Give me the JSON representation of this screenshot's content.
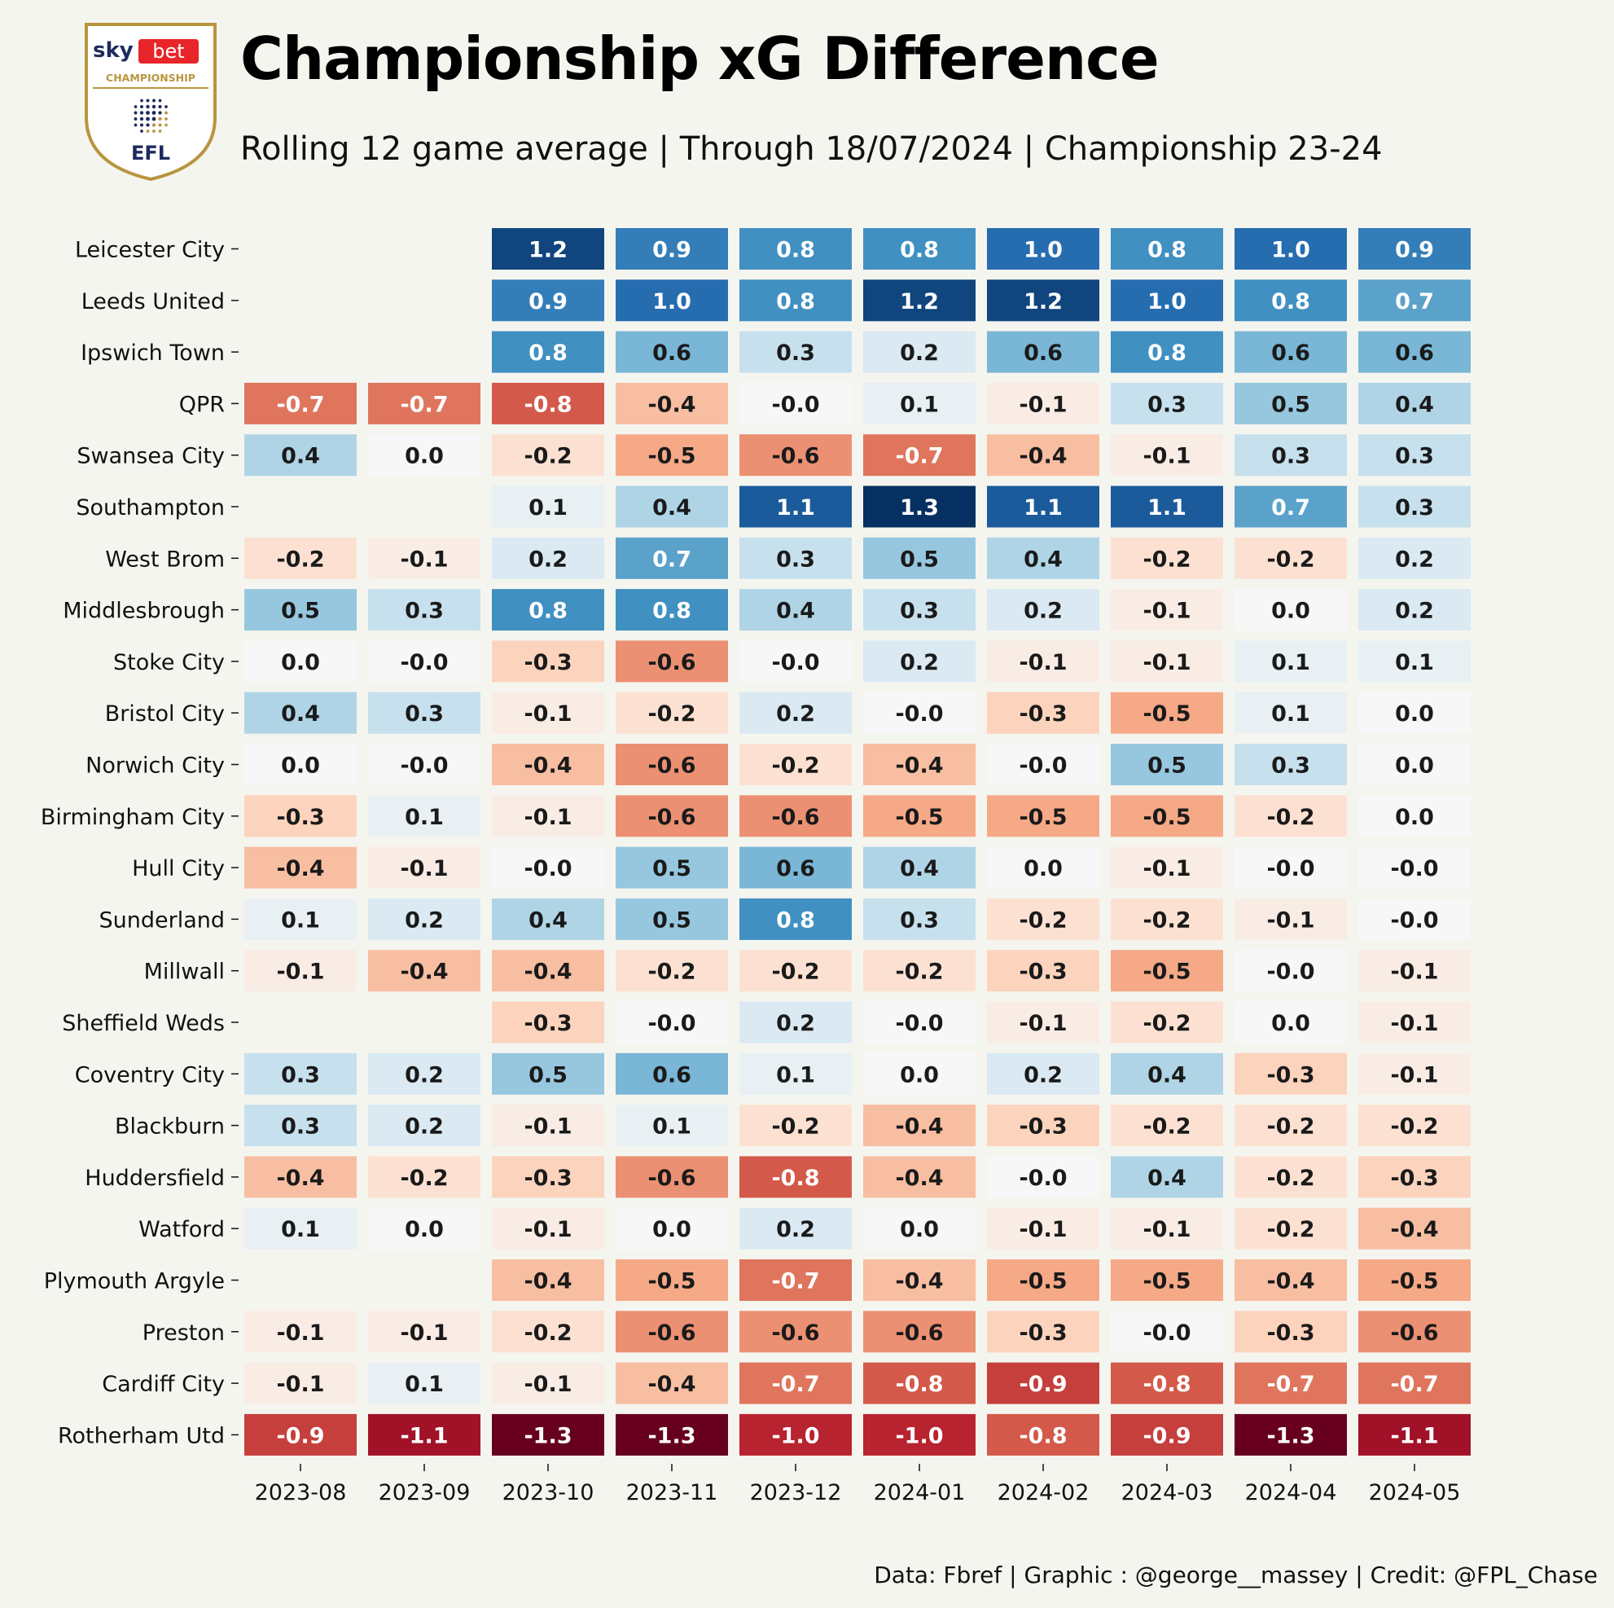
{
  "header": {
    "title": "Championship xG Difference",
    "subtitle": "Rolling 12 game average | Through 18/07/2024 | Championship 23-24"
  },
  "logo": {
    "brand_sky": "sky",
    "brand_bet": "bet",
    "league": "CHAMPIONSHIP",
    "federation": "EFL"
  },
  "footer": {
    "credit": "Data: Fbref | Graphic : @george__massey | Credit: @FPL_Chase"
  },
  "colors": {
    "background": "#f5f5f0",
    "positive_max": "#053061",
    "negative_max": "#67001f",
    "neutral": "#f7f7f7",
    "logo_gold": "#b8963e",
    "logo_navy": "#1d2a5e",
    "logo_red": "#e8252a"
  },
  "chart_data": {
    "type": "heatmap",
    "title": "Championship xG Difference",
    "subtitle": "Rolling 12 game average | Through 18/07/2024 | Championship 23-24",
    "xlabel": "",
    "ylabel": "",
    "color_scale": "diverging red-blue",
    "value_range": [
      -1.3,
      1.3
    ],
    "columns": [
      "2023-08",
      "2023-09",
      "2023-10",
      "2023-11",
      "2023-12",
      "2024-01",
      "2024-02",
      "2024-03",
      "2024-04",
      "2024-05"
    ],
    "rows": [
      "Leicester City",
      "Leeds United",
      "Ipswich Town",
      "QPR",
      "Swansea City",
      "Southampton",
      "West Brom",
      "Middlesbrough",
      "Stoke City",
      "Bristol City",
      "Norwich City",
      "Birmingham City",
      "Hull City",
      "Sunderland",
      "Millwall",
      "Sheffield Weds",
      "Coventry City",
      "Blackburn",
      "Huddersfield",
      "Watford",
      "Plymouth Argyle",
      "Preston",
      "Cardiff City",
      "Rotherham Utd"
    ],
    "values": [
      [
        null,
        null,
        1.2,
        0.9,
        0.8,
        0.8,
        1.0,
        0.8,
        1.0,
        0.9
      ],
      [
        null,
        null,
        0.9,
        1.0,
        0.8,
        1.2,
        1.2,
        1.0,
        0.8,
        0.7
      ],
      [
        null,
        null,
        0.8,
        0.6,
        0.3,
        0.2,
        0.6,
        0.8,
        0.6,
        0.6
      ],
      [
        -0.7,
        -0.7,
        -0.8,
        -0.4,
        -0.0,
        0.1,
        -0.1,
        0.3,
        0.5,
        0.4
      ],
      [
        0.4,
        0.0,
        -0.2,
        -0.5,
        -0.6,
        -0.7,
        -0.4,
        -0.1,
        0.3,
        0.3
      ],
      [
        null,
        null,
        0.1,
        0.4,
        1.1,
        1.3,
        1.1,
        1.1,
        0.7,
        0.3
      ],
      [
        -0.2,
        -0.1,
        0.2,
        0.7,
        0.3,
        0.5,
        0.4,
        -0.2,
        -0.2,
        0.2
      ],
      [
        0.5,
        0.3,
        0.8,
        0.8,
        0.4,
        0.3,
        0.2,
        -0.1,
        0.0,
        0.2
      ],
      [
        0.0,
        -0.0,
        -0.3,
        -0.6,
        -0.0,
        0.2,
        -0.1,
        -0.1,
        0.1,
        0.1
      ],
      [
        0.4,
        0.3,
        -0.1,
        -0.2,
        0.2,
        -0.0,
        -0.3,
        -0.5,
        0.1,
        0.0
      ],
      [
        0.0,
        -0.0,
        -0.4,
        -0.6,
        -0.2,
        -0.4,
        -0.0,
        0.5,
        0.3,
        0.0
      ],
      [
        -0.3,
        0.1,
        -0.1,
        -0.6,
        -0.6,
        -0.5,
        -0.5,
        -0.5,
        -0.2,
        0.0
      ],
      [
        -0.4,
        -0.1,
        -0.0,
        0.5,
        0.6,
        0.4,
        0.0,
        -0.1,
        -0.0,
        -0.0
      ],
      [
        0.1,
        0.2,
        0.4,
        0.5,
        0.8,
        0.3,
        -0.2,
        -0.2,
        -0.1,
        -0.0
      ],
      [
        -0.1,
        -0.4,
        -0.4,
        -0.2,
        -0.2,
        -0.2,
        -0.3,
        -0.5,
        -0.0,
        -0.1
      ],
      [
        null,
        null,
        -0.3,
        -0.0,
        0.2,
        -0.0,
        -0.1,
        -0.2,
        0.0,
        -0.1
      ],
      [
        0.3,
        0.2,
        0.5,
        0.6,
        0.1,
        0.0,
        0.2,
        0.4,
        -0.3,
        -0.1
      ],
      [
        0.3,
        0.2,
        -0.1,
        0.1,
        -0.2,
        -0.4,
        -0.3,
        -0.2,
        -0.2,
        -0.2
      ],
      [
        -0.4,
        -0.2,
        -0.3,
        -0.6,
        -0.8,
        -0.4,
        -0.0,
        0.4,
        -0.2,
        -0.3
      ],
      [
        0.1,
        0.0,
        -0.1,
        0.0,
        0.2,
        0.0,
        -0.1,
        -0.1,
        -0.2,
        -0.4
      ],
      [
        null,
        null,
        -0.4,
        -0.5,
        -0.7,
        -0.4,
        -0.5,
        -0.5,
        -0.4,
        -0.5
      ],
      [
        -0.1,
        -0.1,
        -0.2,
        -0.6,
        -0.6,
        -0.6,
        -0.3,
        -0.0,
        -0.3,
        -0.6
      ],
      [
        -0.1,
        0.1,
        -0.1,
        -0.4,
        -0.7,
        -0.8,
        -0.9,
        -0.8,
        -0.7,
        -0.7
      ],
      [
        -0.9,
        -1.1,
        -1.3,
        -1.3,
        -1.0,
        -1.0,
        -0.8,
        -0.9,
        -1.3,
        -1.1
      ]
    ],
    "labels": [
      [
        null,
        null,
        "1.2",
        "0.9",
        "0.8",
        "0.8",
        "1.0",
        "0.8",
        "1.0",
        "0.9"
      ],
      [
        null,
        null,
        "0.9",
        "1.0",
        "0.8",
        "1.2",
        "1.2",
        "1.0",
        "0.8",
        "0.7"
      ],
      [
        null,
        null,
        "0.8",
        "0.6",
        "0.3",
        "0.2",
        "0.6",
        "0.8",
        "0.6",
        "0.6"
      ],
      [
        "-0.7",
        "-0.7",
        "-0.8",
        "-0.4",
        "-0.0",
        "0.1",
        "-0.1",
        "0.3",
        "0.5",
        "0.4"
      ],
      [
        "0.4",
        "0.0",
        "-0.2",
        "-0.5",
        "-0.6",
        "-0.7",
        "-0.4",
        "-0.1",
        "0.3",
        "0.3"
      ],
      [
        null,
        null,
        "0.1",
        "0.4",
        "1.1",
        "1.3",
        "1.1",
        "1.1",
        "0.7",
        "0.3"
      ],
      [
        "-0.2",
        "-0.1",
        "0.2",
        "0.7",
        "0.3",
        "0.5",
        "0.4",
        "-0.2",
        "-0.2",
        "0.2"
      ],
      [
        "0.5",
        "0.3",
        "0.8",
        "0.8",
        "0.4",
        "0.3",
        "0.2",
        "-0.1",
        "0.0",
        "0.2"
      ],
      [
        "0.0",
        "-0.0",
        "-0.3",
        "-0.6",
        "-0.0",
        "0.2",
        "-0.1",
        "-0.1",
        "0.1",
        "0.1"
      ],
      [
        "0.4",
        "0.3",
        "-0.1",
        "-0.2",
        "0.2",
        "-0.0",
        "-0.3",
        "-0.5",
        "0.1",
        "0.0"
      ],
      [
        "0.0",
        "-0.0",
        "-0.4",
        "-0.6",
        "-0.2",
        "-0.4",
        "-0.0",
        "0.5",
        "0.3",
        "0.0"
      ],
      [
        "-0.3",
        "0.1",
        "-0.1",
        "-0.6",
        "-0.6",
        "-0.5",
        "-0.5",
        "-0.5",
        "-0.2",
        "0.0"
      ],
      [
        "-0.4",
        "-0.1",
        "-0.0",
        "0.5",
        "0.6",
        "0.4",
        "0.0",
        "-0.1",
        "-0.0",
        "-0.0"
      ],
      [
        "0.1",
        "0.2",
        "0.4",
        "0.5",
        "0.8",
        "0.3",
        "-0.2",
        "-0.2",
        "-0.1",
        "-0.0"
      ],
      [
        "-0.1",
        "-0.4",
        "-0.4",
        "-0.2",
        "-0.2",
        "-0.2",
        "-0.3",
        "-0.5",
        "-0.0",
        "-0.1"
      ],
      [
        null,
        null,
        "-0.3",
        "-0.0",
        "0.2",
        "-0.0",
        "-0.1",
        "-0.2",
        "0.0",
        "-0.1"
      ],
      [
        "0.3",
        "0.2",
        "0.5",
        "0.6",
        "0.1",
        "0.0",
        "0.2",
        "0.4",
        "-0.3",
        "-0.1"
      ],
      [
        "0.3",
        "0.2",
        "-0.1",
        "0.1",
        "-0.2",
        "-0.4",
        "-0.3",
        "-0.2",
        "-0.2",
        "-0.2"
      ],
      [
        "-0.4",
        "-0.2",
        "-0.3",
        "-0.6",
        "-0.8",
        "-0.4",
        "-0.0",
        "0.4",
        "-0.2",
        "-0.3"
      ],
      [
        "0.1",
        "0.0",
        "-0.1",
        "0.0",
        "0.2",
        "0.0",
        "-0.1",
        "-0.1",
        "-0.2",
        "-0.4"
      ],
      [
        null,
        null,
        "-0.4",
        "-0.5",
        "-0.7",
        "-0.4",
        "-0.5",
        "-0.5",
        "-0.4",
        "-0.5"
      ],
      [
        "-0.1",
        "-0.1",
        "-0.2",
        "-0.6",
        "-0.6",
        "-0.6",
        "-0.3",
        "-0.0",
        "-0.3",
        "-0.6"
      ],
      [
        "-0.1",
        "0.1",
        "-0.1",
        "-0.4",
        "-0.7",
        "-0.8",
        "-0.9",
        "-0.8",
        "-0.7",
        "-0.7"
      ],
      [
        "-0.9",
        "-1.1",
        "-1.3",
        "-1.3",
        "-1.0",
        "-1.0",
        "-0.8",
        "-0.9",
        "-1.3",
        "-1.1"
      ]
    ]
  }
}
